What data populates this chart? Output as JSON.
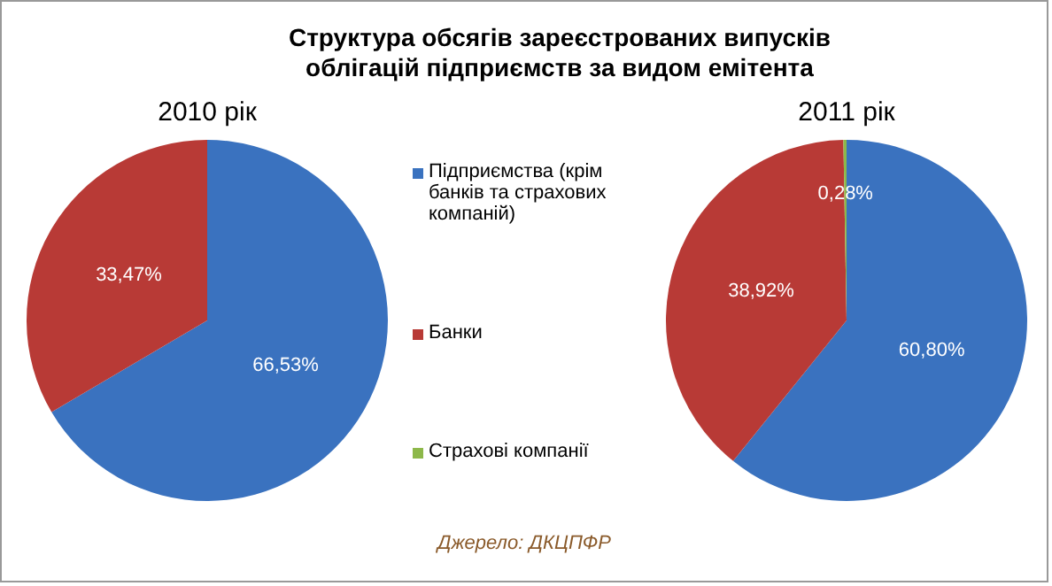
{
  "chart_data": [
    {
      "type": "pie",
      "title": "Структура обсягів зареєстрованих випусків облігацій підприємств за видом емітента",
      "subtitle": "2010 рік",
      "categories": [
        null,
        null
      ],
      "values": [
        66.53,
        33.47
      ],
      "colors": [
        "#3a72bf",
        "#b83a36"
      ],
      "value_labels": [
        "66,53%",
        "33,47%"
      ]
    },
    {
      "type": "pie",
      "subtitle": "2011 рік",
      "categories": [
        "Підприємства (крім банків та страхових компаній)",
        "Банки",
        "Страхові компанії"
      ],
      "values": [
        60.8,
        38.92,
        0.28
      ],
      "colors": [
        "#3a72bf",
        "#b83a36",
        "#8db84a"
      ],
      "value_labels": [
        "60,80%",
        "38,92%",
        "0,28%"
      ],
      "legend": "left",
      "annotations": [
        "Джерело: ДКЦПФР"
      ]
    }
  ]
}
